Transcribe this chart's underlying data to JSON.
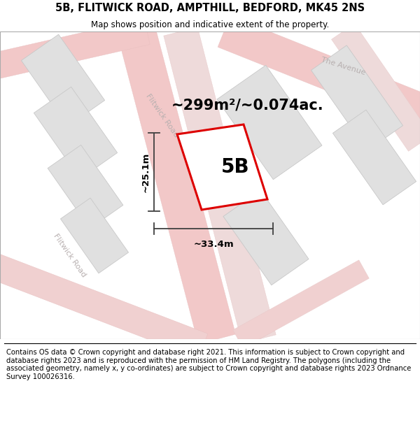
{
  "title": "5B, FLITWICK ROAD, AMPTHILL, BEDFORD, MK45 2NS",
  "subtitle": "Map shows position and indicative extent of the property.",
  "footer": "Contains OS data © Crown copyright and database right 2021. This information is subject to Crown copyright and database rights 2023 and is reproduced with the permission of HM Land Registry. The polygons (including the associated geometry, namely x, y co-ordinates) are subject to Crown copyright and database rights 2023 Ordnance Survey 100026316.",
  "area_label": "~299m²/~0.074ac.",
  "width_label": "~33.4m",
  "height_label": "~25.1m",
  "property_label": "5B",
  "map_bg": "#f7f7f5",
  "road_fill": "#f2c8c8",
  "road_line": "#e8b0b0",
  "building_fill": "#e0e0e0",
  "building_edge": "#c8c8c8",
  "red_poly_color": "#dd0000",
  "road_label_color": "#b8b0b0",
  "dim_line_color": "#404040",
  "title_fontsize": 10.5,
  "subtitle_fontsize": 8.5,
  "footer_fontsize": 7.2,
  "area_fontsize": 15,
  "prop_label_fontsize": 20,
  "road_label_fontsize": 8,
  "dim_label_fontsize": 9.5
}
